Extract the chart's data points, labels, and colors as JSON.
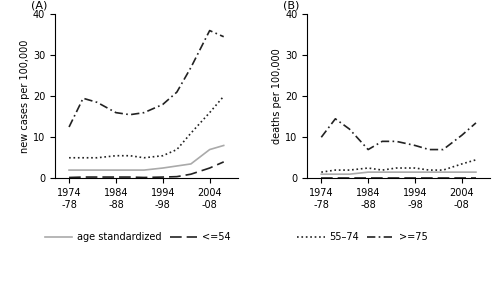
{
  "x_labels": [
    "1974\n-78",
    "1984\n-88",
    "1994\n-98",
    "2004\n-08"
  ],
  "x_ticks": [
    1976,
    1986,
    1996,
    2006
  ],
  "x_values": [
    1976,
    1979,
    1982,
    1986,
    1989,
    1992,
    1996,
    1999,
    2002,
    2006,
    2009
  ],
  "A_age_std": [
    2.0,
    2.0,
    2.0,
    2.0,
    2.0,
    2.0,
    2.5,
    3.0,
    3.5,
    7.0,
    8.0
  ],
  "A_le54": [
    0.2,
    0.3,
    0.3,
    0.3,
    0.3,
    0.2,
    0.3,
    0.4,
    1.0,
    2.5,
    4.0
  ],
  "A_55_74": [
    5.0,
    5.0,
    5.0,
    5.5,
    5.5,
    5.0,
    5.5,
    7.0,
    11.0,
    16.0,
    20.0
  ],
  "A_ge75": [
    12.5,
    19.5,
    18.5,
    16.0,
    15.5,
    16.0,
    18.0,
    21.0,
    27.0,
    36.0,
    34.5
  ],
  "B_age_std": [
    1.0,
    1.0,
    1.0,
    1.5,
    1.5,
    1.5,
    1.5,
    1.5,
    1.5,
    1.5,
    1.5
  ],
  "B_le54": [
    0.1,
    0.1,
    0.1,
    0.1,
    0.1,
    0.1,
    0.1,
    0.1,
    0.1,
    0.1,
    0.1
  ],
  "B_55_74": [
    1.5,
    2.0,
    2.0,
    2.5,
    2.0,
    2.5,
    2.5,
    2.0,
    2.0,
    3.5,
    4.5
  ],
  "B_ge75": [
    10.0,
    14.5,
    12.0,
    7.0,
    9.0,
    9.0,
    8.0,
    7.0,
    7.0,
    10.5,
    13.5
  ],
  "color_age_std": "#aaaaaa",
  "color_black": "#222222",
  "ylim": [
    0,
    40
  ],
  "yticks": [
    0,
    10,
    20,
    30,
    40
  ],
  "title_A": "(A)",
  "title_B": "(B)",
  "ylabel_A": "new cases per 100,000",
  "ylabel_B": "deaths per 100,000",
  "legend_age_std": "age standardized",
  "legend_le54": "<=54",
  "legend_55_74": "55–74",
  "legend_ge75": ">=75",
  "lw": 1.2
}
